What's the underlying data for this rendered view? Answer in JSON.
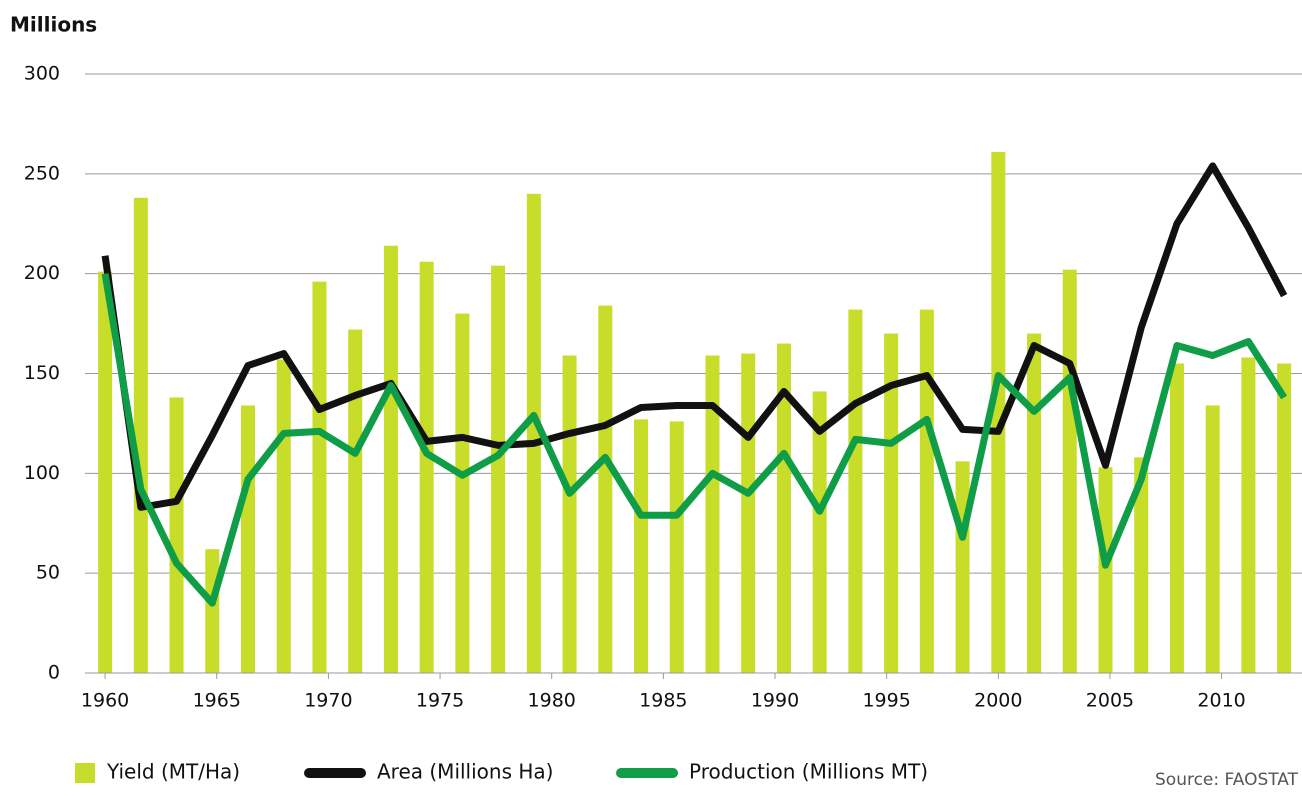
{
  "chart_data": {
    "type": "bar_line",
    "y_axis_label": "Millions",
    "source": "Source: FAOSTAT",
    "x": [
      1960.0,
      1961.6,
      1963.2,
      1964.8,
      1966.4,
      1968.0,
      1969.6,
      1971.2,
      1972.8,
      1974.4,
      1976.0,
      1977.6,
      1979.2,
      1980.8,
      1982.4,
      1984.0,
      1985.6,
      1987.2,
      1988.8,
      1990.4,
      1992.0,
      1993.6,
      1995.2,
      1996.8,
      1998.4,
      2000.0,
      2001.6,
      2003.2,
      2004.8,
      2006.4,
      2008.0,
      2009.6,
      2011.2,
      2012.8
    ],
    "series": [
      {
        "name": "Yield (MT/Ha)",
        "kind": "bar",
        "color": "#c8dc2a",
        "values": [
          201,
          238,
          138,
          62,
          134,
          157,
          196,
          172,
          214,
          206,
          180,
          204,
          240,
          159,
          184,
          127,
          126,
          159,
          160,
          165,
          141,
          182,
          170,
          182,
          106,
          261,
          170,
          202,
          103,
          108,
          155,
          134,
          158,
          155
        ]
      },
      {
        "name": "Area (Millions Ha)",
        "kind": "line",
        "color": "#111111",
        "values": [
          209,
          83,
          86,
          119,
          154,
          160,
          132,
          139,
          145,
          116,
          118,
          114,
          115,
          120,
          124,
          133,
          134,
          134,
          118,
          141,
          121,
          135,
          144,
          149,
          122,
          121,
          164,
          155,
          104,
          173,
          225,
          254,
          223,
          189
        ]
      },
      {
        "name": "Production (Millions MT)",
        "kind": "line",
        "color": "#0f9d48",
        "values": [
          200,
          92,
          55,
          35,
          97,
          120,
          121,
          110,
          144,
          110,
          99,
          109,
          129,
          90,
          108,
          79,
          79,
          100,
          90,
          110,
          81,
          117,
          115,
          127,
          68,
          149,
          131,
          148,
          54,
          97,
          164,
          159,
          166,
          138
        ]
      }
    ],
    "xlim": [
      1959.1,
      2013.6
    ],
    "xticks": [
      1960,
      1965,
      1970,
      1975,
      1980,
      1985,
      1990,
      1995,
      2000,
      2005,
      2010
    ],
    "ylim": [
      0,
      300
    ],
    "yticks": [
      0,
      50,
      100,
      150,
      200,
      250,
      300
    ],
    "grid": true,
    "legend": "bottom"
  }
}
